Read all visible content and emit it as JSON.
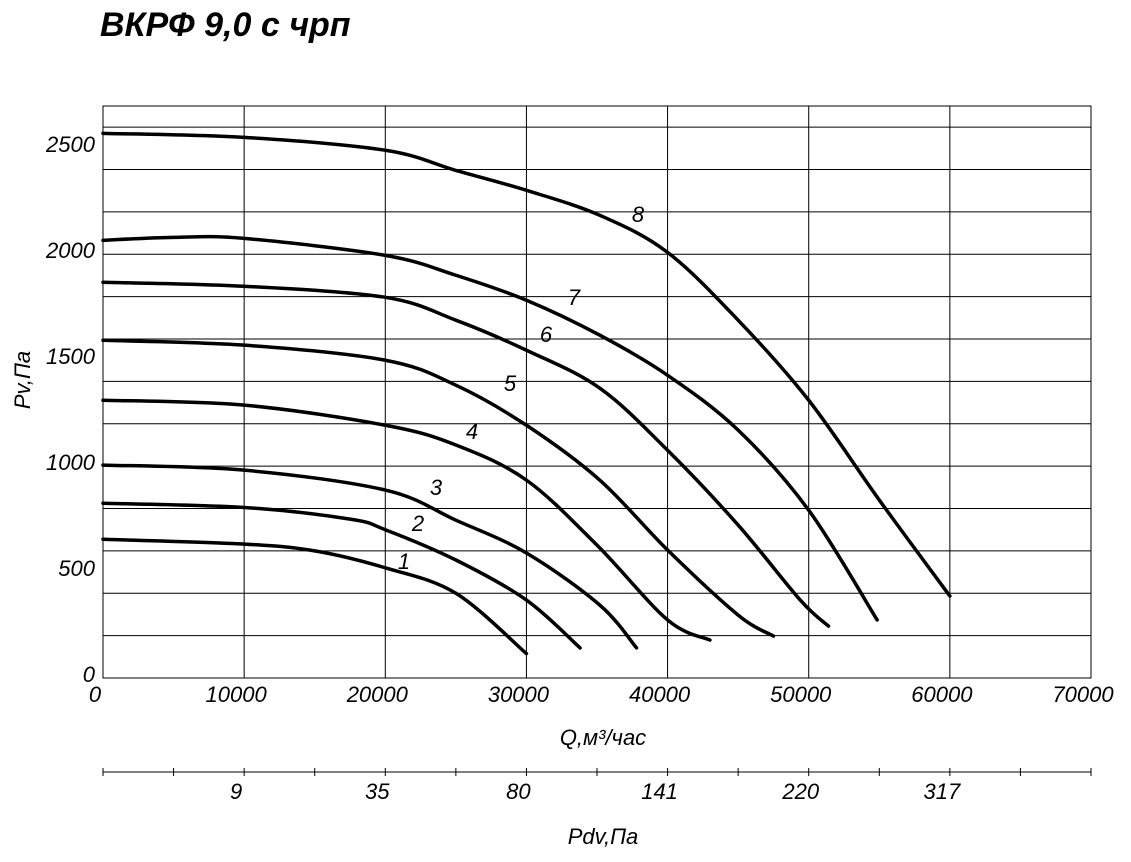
{
  "chart_data": {
    "type": "line",
    "title": "ВКРФ 9,0 с чрп",
    "xlabel": "Q,м³/час",
    "ylabel": "Pv,Па",
    "xlim": [
      0,
      70000
    ],
    "xticks": [
      0,
      10000,
      20000,
      30000,
      40000,
      50000,
      60000,
      70000
    ],
    "ylim": [
      0,
      2700
    ],
    "yticks": [
      0,
      500,
      1000,
      1500,
      2000,
      2500
    ],
    "ygrid": [
      200,
      400,
      600,
      800,
      1000,
      1200,
      1400,
      1600,
      1800,
      2000,
      2200,
      2400,
      2600
    ],
    "grid": true,
    "color": "#000000",
    "secondary_xlabel": "Pdv,Па",
    "secondary_xticks": [
      {
        "value": 10000,
        "label": "9"
      },
      {
        "value": 20000,
        "label": "35"
      },
      {
        "value": 30000,
        "label": "80"
      },
      {
        "value": 40000,
        "label": "141"
      },
      {
        "value": 50000,
        "label": "220"
      },
      {
        "value": 60000,
        "label": "317"
      }
    ],
    "secondary_minor_ticks": [
      0,
      5000,
      10000,
      15000,
      20000,
      25000,
      30000,
      35000,
      40000,
      45000,
      50000,
      55000,
      60000,
      65000,
      70000
    ],
    "series": [
      {
        "name": "1",
        "x": [
          0,
          10000,
          15000,
          20000,
          25000,
          30000
        ],
        "values": [
          655,
          632,
          600,
          520,
          400,
          115
        ]
      },
      {
        "name": "2",
        "x": [
          0,
          10000,
          17500,
          20000,
          25000,
          30000,
          33800
        ],
        "values": [
          825,
          805,
          750,
          700,
          557,
          368,
          142
        ]
      },
      {
        "name": "3",
        "x": [
          0,
          10000,
          20000,
          25000,
          30000,
          35200,
          37800
        ],
        "values": [
          1005,
          981,
          887,
          745,
          590,
          344,
          142
        ]
      },
      {
        "name": "4",
        "x": [
          0,
          10000,
          20000,
          25000,
          30000,
          35000,
          40000,
          43000
        ],
        "values": [
          1311,
          1288,
          1193,
          1100,
          934,
          627,
          274,
          179
        ]
      },
      {
        "name": "5",
        "x": [
          0,
          10000,
          20000,
          25000,
          30000,
          35200,
          40000,
          45000,
          47500
        ],
        "values": [
          1594,
          1571,
          1500,
          1382,
          1193,
          934,
          604,
          297,
          198
        ]
      },
      {
        "name": "6",
        "x": [
          0,
          10000,
          20000,
          25000,
          30000,
          35200,
          40000,
          45000,
          49400,
          51400
        ],
        "values": [
          1868,
          1849,
          1797,
          1689,
          1547,
          1368,
          1075,
          722,
          368,
          245
        ]
      },
      {
        "name": "7",
        "x": [
          0,
          5000,
          10000,
          20000,
          25000,
          30000,
          35200,
          40000,
          45000,
          50000,
          54850
        ],
        "values": [
          2066,
          2080,
          2075,
          1995,
          1901,
          1783,
          1618,
          1429,
          1170,
          792,
          274
        ]
      },
      {
        "name": "8",
        "x": [
          0,
          10000,
          20000,
          25000,
          30000,
          35200,
          40000,
          45000,
          50000,
          55000,
          60000
        ],
        "values": [
          2571,
          2552,
          2491,
          2396,
          2302,
          2184,
          2009,
          1689,
          1311,
          840,
          387
        ]
      }
    ]
  }
}
